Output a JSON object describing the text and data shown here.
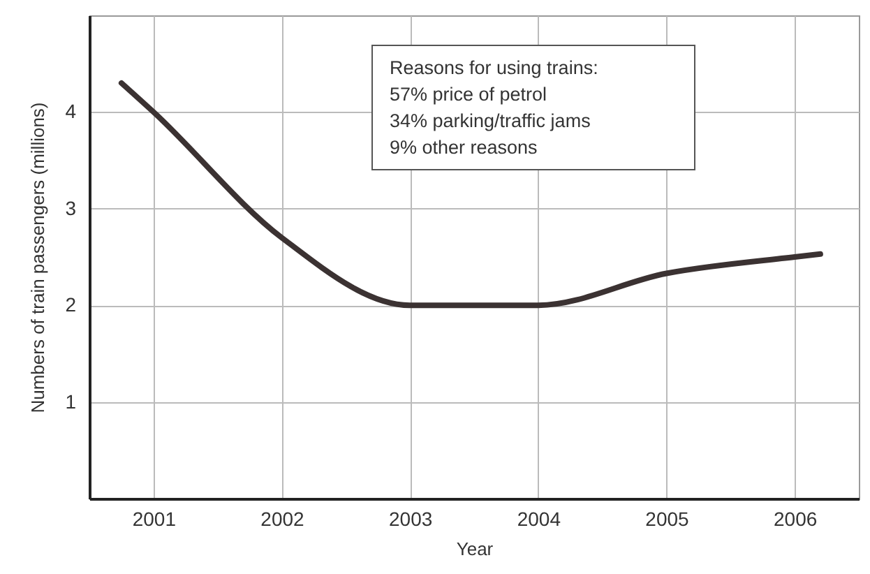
{
  "chart_data": {
    "type": "line",
    "xlabel": "Year",
    "ylabel": "Numbers of train passengers (millions)",
    "x": [
      2000.75,
      2001,
      2002,
      2003,
      2004,
      2005,
      2006,
      2006.2
    ],
    "series": [
      {
        "color": "#3b3232",
        "values": [
          4.3,
          4.0,
          2.7,
          2.0,
          2.0,
          2.33,
          2.5,
          2.53
        ]
      }
    ],
    "xlim": [
      2000.5,
      2006.5
    ],
    "xticks": [
      2001,
      2002,
      2003,
      2004,
      2005,
      2006
    ],
    "ylim": [
      0,
      5
    ],
    "yticks": [
      1,
      2,
      3,
      4
    ],
    "grid": true,
    "line_style": "solid",
    "annotations": [
      "Reasons for using trains:\n57% price of petrol\n34% parking/traffic jams\n9% other reasons"
    ]
  }
}
